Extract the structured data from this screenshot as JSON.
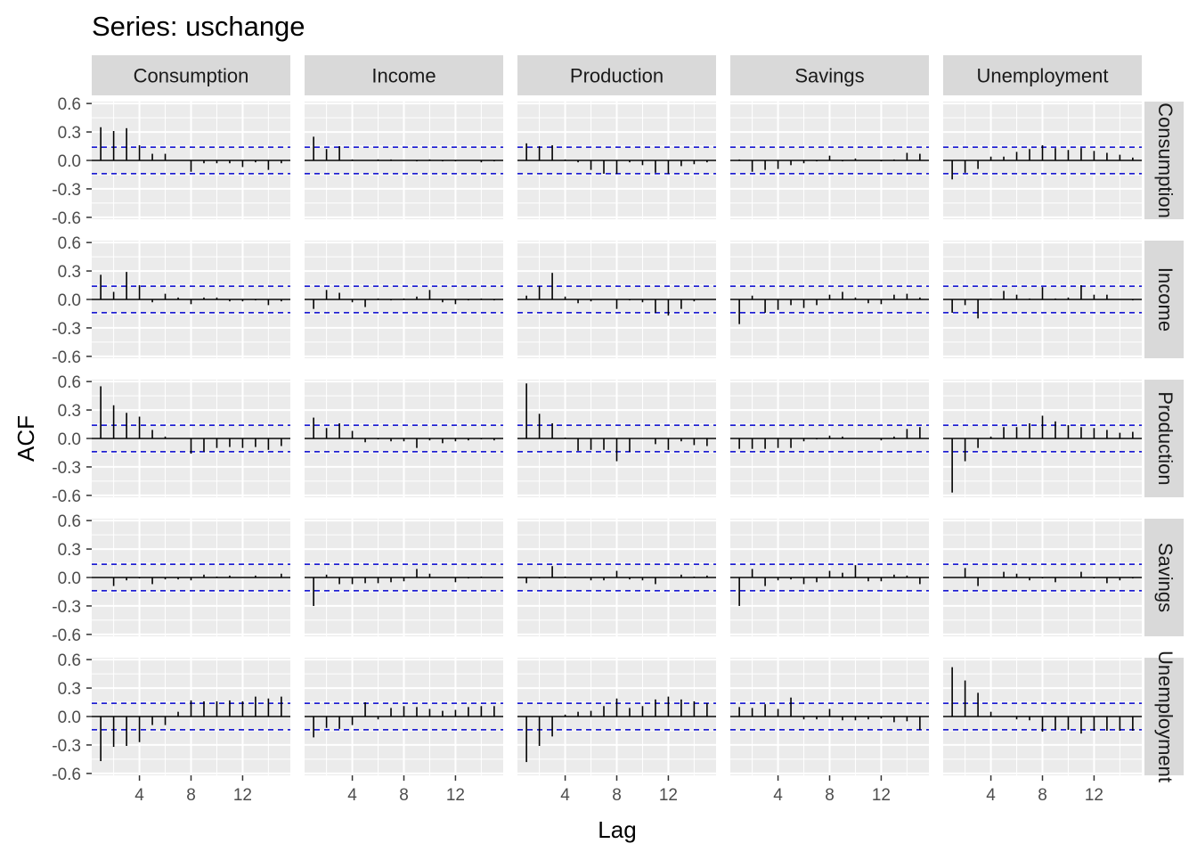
{
  "chart_data": {
    "type": "bar",
    "title": "Series: uschange",
    "xlabel": "Lag",
    "ylabel": "ACF",
    "variables": [
      "Consumption",
      "Income",
      "Production",
      "Savings",
      "Unemployment"
    ],
    "x": [
      1,
      2,
      3,
      4,
      5,
      6,
      7,
      8,
      9,
      10,
      11,
      12,
      13,
      14,
      15
    ],
    "x_ticks": [
      4,
      8,
      12
    ],
    "y_ticks": [
      0.6,
      0.3,
      0.0,
      -0.3,
      -0.6
    ],
    "y_tick_labels": [
      "0.6",
      "0.3",
      "0.0",
      "-0.3",
      "-0.6"
    ],
    "x_tick_labels": [
      "4",
      "8",
      "12"
    ],
    "ylim": [
      -0.62,
      0.62
    ],
    "xlim": [
      0.3,
      15.7
    ],
    "confidence_bound": 0.14,
    "colors": {
      "panel_bg": "#ebebeb",
      "grid": "#ffffff",
      "strip_bg": "#d9d9d9",
      "line": "#000000",
      "ci": "#0000cc"
    },
    "grid": true,
    "panels": [
      {
        "row": "Consumption",
        "col": "Consumption",
        "values": [
          0.35,
          0.31,
          0.34,
          0.16,
          0.07,
          0.07,
          0.0,
          -0.12,
          -0.03,
          -0.03,
          -0.03,
          -0.07,
          -0.02,
          -0.1,
          -0.03
        ]
      },
      {
        "row": "Consumption",
        "col": "Income",
        "values": [
          0.25,
          0.12,
          0.15,
          0.01,
          0.0,
          0.01,
          0.01,
          0.0,
          -0.01,
          0.01,
          -0.01,
          -0.01,
          0.0,
          -0.02,
          -0.01
        ]
      },
      {
        "row": "Consumption",
        "col": "Production",
        "values": [
          0.18,
          0.15,
          0.16,
          0.01,
          -0.02,
          -0.1,
          -0.14,
          -0.14,
          -0.02,
          -0.05,
          -0.13,
          -0.14,
          -0.06,
          -0.04,
          -0.02
        ]
      },
      {
        "row": "Consumption",
        "col": "Savings",
        "values": [
          0.01,
          -0.12,
          -0.1,
          -0.09,
          -0.05,
          -0.03,
          -0.01,
          0.05,
          -0.01,
          0.02,
          0.0,
          -0.01,
          0.01,
          0.08,
          0.07
        ]
      },
      {
        "row": "Consumption",
        "col": "Unemployment",
        "values": [
          -0.2,
          -0.13,
          -0.09,
          0.04,
          0.04,
          0.09,
          0.12,
          0.16,
          0.13,
          0.11,
          0.13,
          0.1,
          0.08,
          0.06,
          0.03
        ]
      },
      {
        "row": "Income",
        "col": "Consumption",
        "values": [
          0.26,
          0.08,
          0.29,
          0.15,
          -0.03,
          0.06,
          0.02,
          -0.05,
          0.02,
          0.02,
          -0.02,
          -0.02,
          -0.01,
          -0.06,
          -0.02
        ]
      },
      {
        "row": "Income",
        "col": "Income",
        "values": [
          -0.1,
          0.1,
          0.07,
          -0.03,
          -0.08,
          0.01,
          -0.01,
          0.01,
          0.03,
          0.1,
          -0.03,
          -0.05,
          -0.01,
          0.01,
          -0.01
        ]
      },
      {
        "row": "Income",
        "col": "Production",
        "values": [
          0.04,
          0.14,
          0.28,
          0.03,
          -0.04,
          -0.02,
          0.0,
          -0.1,
          -0.01,
          -0.03,
          -0.14,
          -0.17,
          -0.1,
          -0.02,
          0.0
        ]
      },
      {
        "row": "Income",
        "col": "Savings",
        "values": [
          -0.26,
          0.04,
          -0.14,
          -0.11,
          -0.06,
          -0.09,
          -0.06,
          0.05,
          0.08,
          0.02,
          -0.04,
          -0.05,
          0.05,
          0.06,
          0.02
        ]
      },
      {
        "row": "Income",
        "col": "Unemployment",
        "values": [
          -0.14,
          -0.06,
          -0.2,
          0.01,
          0.09,
          0.05,
          0.01,
          0.13,
          0.01,
          0.02,
          0.15,
          0.05,
          0.05,
          0.0,
          -0.01
        ]
      },
      {
        "row": "Production",
        "col": "Consumption",
        "values": [
          0.55,
          0.35,
          0.27,
          0.23,
          0.09,
          0.02,
          0.0,
          -0.16,
          -0.14,
          -0.1,
          -0.09,
          -0.1,
          -0.09,
          -0.12,
          -0.08
        ]
      },
      {
        "row": "Production",
        "col": "Income",
        "values": [
          0.22,
          0.11,
          0.16,
          0.08,
          -0.04,
          -0.01,
          -0.03,
          -0.03,
          -0.1,
          -0.02,
          -0.05,
          -0.03,
          -0.02,
          -0.01,
          -0.02
        ]
      },
      {
        "row": "Production",
        "col": "Production",
        "values": [
          0.58,
          0.26,
          0.16,
          0.01,
          -0.13,
          -0.12,
          -0.12,
          -0.24,
          -0.14,
          0.0,
          -0.06,
          -0.12,
          -0.03,
          -0.07,
          -0.08
        ]
      },
      {
        "row": "Production",
        "col": "Savings",
        "values": [
          -0.11,
          -0.11,
          -0.11,
          -0.1,
          -0.1,
          -0.03,
          -0.01,
          0.03,
          0.02,
          0.0,
          0.0,
          -0.02,
          0.02,
          0.1,
          0.12
        ]
      },
      {
        "row": "Production",
        "col": "Unemployment",
        "values": [
          -0.57,
          -0.24,
          -0.1,
          0.02,
          0.12,
          0.12,
          0.16,
          0.24,
          0.18,
          0.14,
          0.12,
          0.11,
          0.09,
          0.06,
          0.07
        ]
      },
      {
        "row": "Savings",
        "col": "Consumption",
        "values": [
          0.0,
          -0.09,
          -0.03,
          -0.01,
          -0.07,
          -0.02,
          -0.02,
          -0.03,
          0.03,
          0.01,
          0.02,
          0.0,
          0.02,
          0.0,
          0.04
        ]
      },
      {
        "row": "Savings",
        "col": "Income",
        "values": [
          -0.3,
          0.03,
          -0.07,
          -0.07,
          -0.06,
          -0.06,
          -0.05,
          -0.04,
          0.09,
          0.04,
          0.0,
          -0.05,
          -0.01,
          0.01,
          0.0
        ]
      },
      {
        "row": "Savings",
        "col": "Production",
        "values": [
          -0.06,
          -0.01,
          0.12,
          0.01,
          0.0,
          -0.03,
          -0.03,
          0.07,
          -0.02,
          -0.03,
          -0.07,
          0.0,
          0.03,
          0.01,
          0.02
        ]
      },
      {
        "row": "Savings",
        "col": "Savings",
        "values": [
          -0.3,
          0.09,
          -0.09,
          -0.03,
          -0.02,
          -0.07,
          -0.05,
          0.07,
          0.05,
          0.13,
          -0.04,
          -0.04,
          0.03,
          0.02,
          -0.07
        ]
      },
      {
        "row": "Savings",
        "col": "Unemployment",
        "values": [
          0.0,
          0.1,
          -0.09,
          0.0,
          0.06,
          0.04,
          -0.03,
          -0.01,
          -0.05,
          0.0,
          0.06,
          -0.01,
          -0.06,
          -0.03,
          -0.01
        ]
      },
      {
        "row": "Unemployment",
        "col": "Consumption",
        "values": [
          -0.47,
          -0.32,
          -0.31,
          -0.27,
          -0.09,
          -0.09,
          0.05,
          0.17,
          0.16,
          0.16,
          0.17,
          0.16,
          0.21,
          0.19,
          0.21
        ]
      },
      {
        "row": "Unemployment",
        "col": "Income",
        "values": [
          -0.22,
          -0.12,
          -0.13,
          -0.09,
          0.15,
          -0.03,
          0.09,
          0.11,
          0.1,
          0.08,
          0.06,
          0.07,
          0.1,
          0.11,
          0.11
        ]
      },
      {
        "row": "Unemployment",
        "col": "Production",
        "values": [
          -0.48,
          -0.31,
          -0.21,
          0.02,
          0.05,
          0.06,
          0.11,
          0.19,
          0.09,
          0.11,
          0.18,
          0.21,
          0.18,
          0.16,
          0.14
        ]
      },
      {
        "row": "Unemployment",
        "col": "Savings",
        "values": [
          0.1,
          0.09,
          0.13,
          0.08,
          0.2,
          -0.03,
          -0.03,
          0.08,
          -0.04,
          -0.04,
          -0.03,
          -0.02,
          -0.06,
          -0.05,
          -0.14
        ]
      },
      {
        "row": "Unemployment",
        "col": "Unemployment",
        "values": [
          0.52,
          0.38,
          0.25,
          0.05,
          0.0,
          -0.03,
          -0.04,
          -0.16,
          -0.14,
          -0.14,
          -0.18,
          -0.15,
          -0.15,
          -0.15,
          -0.15
        ]
      }
    ]
  }
}
